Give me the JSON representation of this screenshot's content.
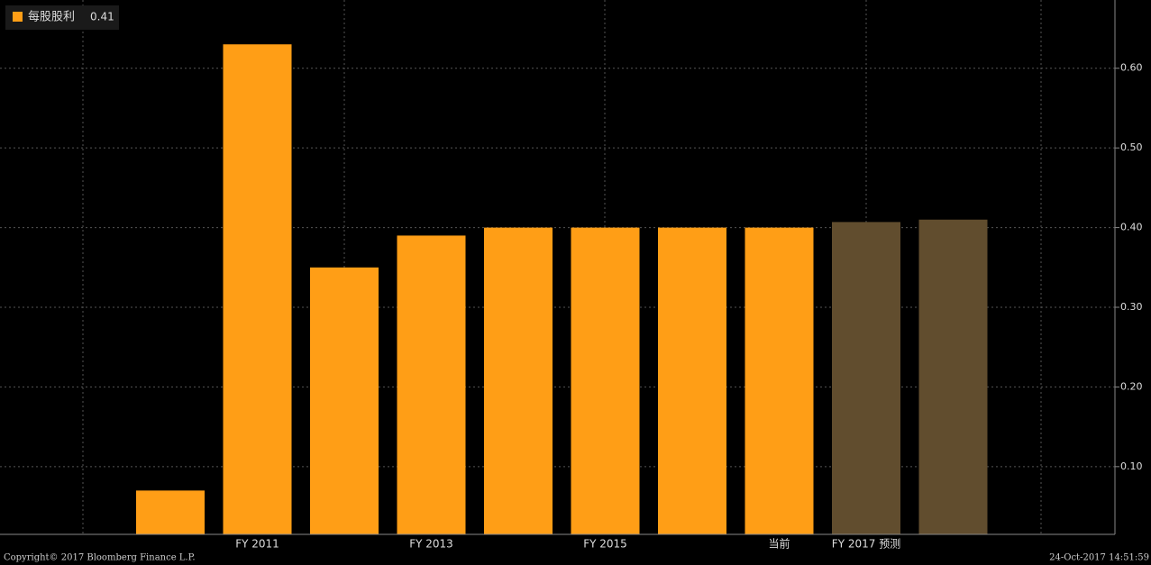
{
  "chart_data": {
    "type": "bar",
    "legend_value": 0.41,
    "categories": [
      null,
      "FY 2011",
      null,
      "FY 2013",
      null,
      "FY 2015",
      null,
      "当前",
      "FY 2017 预测",
      null
    ],
    "series": [
      {
        "name": "每股股利",
        "color": "#ff9e16",
        "colors": [
          "#ff9e16",
          "#ff9e16",
          "#ff9e16",
          "#ff9e16",
          "#ff9e16",
          "#ff9e16",
          "#ff9e16",
          "#ff9e16",
          "#614d2e",
          "#614d2e"
        ],
        "values": [
          0.07,
          0.63,
          0.35,
          0.39,
          0.4,
          0.4,
          0.4,
          0.4,
          0.407,
          0.41
        ]
      }
    ],
    "ylim": [
      0.015,
      0.68
    ],
    "yticks": [
      {
        "value": 0.1,
        "label": "0.10"
      },
      {
        "value": 0.2,
        "label": "0.20"
      },
      {
        "value": 0.3,
        "label": "0.30"
      },
      {
        "value": 0.4,
        "label": "0.40"
      },
      {
        "value": 0.5,
        "label": "0.50"
      },
      {
        "value": 0.6,
        "label": "0.60"
      }
    ],
    "grid": true,
    "copyright": "Copyright© 2017 Bloomberg Finance L.P.",
    "timestamp": "24-Oct-2017 14:51:59"
  }
}
